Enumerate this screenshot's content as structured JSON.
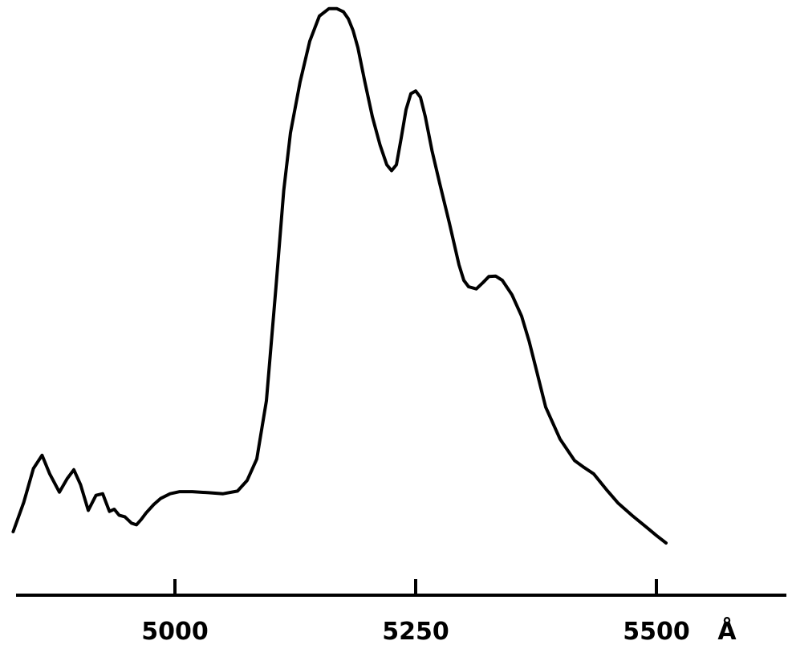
{
  "chart_data": {
    "type": "line",
    "title": "",
    "xlabel": "Å",
    "ylabel": "",
    "xlim": [
      4835,
      5635
    ],
    "ylim": [
      0,
      100
    ],
    "xticks": [
      5000,
      5250,
      5500
    ],
    "tick_labels": [
      "5000",
      "5250",
      "5500"
    ],
    "grid": false,
    "legend": "none",
    "line_color": "#000000",
    "series": [
      {
        "x": [
          4832,
          4843,
          4853,
          4862,
          4870,
          4880,
          4888,
          4895,
          4902,
          4910,
          4918,
          4925,
          4932,
          4937,
          4942,
          4948,
          4955,
          4960,
          4965,
          4970,
          4978,
          4985,
          4995,
          5005,
          5018,
          5035,
          5050,
          5065,
          5075,
          5085,
          5095,
          5105,
          5113,
          5120,
          5130,
          5140,
          5150,
          5160,
          5168,
          5175,
          5180,
          5185,
          5190,
          5197,
          5205,
          5213,
          5220,
          5225,
          5230,
          5235,
          5240,
          5245,
          5250,
          5255,
          5260,
          5267,
          5275,
          5285,
          5295,
          5300,
          5305,
          5313,
          5320,
          5326,
          5333,
          5340,
          5350,
          5360,
          5368,
          5375,
          5385,
          5400,
          5415,
          5425,
          5435,
          5448,
          5460,
          5475,
          5490,
          5500,
          5510
        ],
        "y": [
          3.0,
          8.5,
          14.8,
          17.3,
          13.8,
          10.4,
          12.9,
          14.6,
          11.8,
          7.0,
          9.8,
          10.1,
          6.8,
          7.2,
          6.1,
          5.8,
          4.6,
          4.3,
          5.3,
          6.5,
          8.1,
          9.2,
          10.1,
          10.5,
          10.5,
          10.3,
          10.1,
          10.6,
          12.6,
          16.6,
          27.5,
          48.9,
          66.8,
          77.6,
          87.1,
          94.7,
          99.4,
          100.8,
          100.8,
          100.2,
          98.9,
          96.7,
          93.5,
          87.3,
          80.6,
          75.3,
          71.6,
          70.5,
          71.6,
          76.6,
          81.9,
          84.9,
          85.4,
          84.2,
          80.6,
          74.2,
          68.1,
          60.7,
          52.9,
          50.0,
          48.8,
          48.4,
          49.6,
          50.7,
          50.8,
          50.0,
          47.3,
          43.3,
          38.5,
          33.5,
          26.3,
          20.3,
          16.3,
          15.0,
          13.8,
          10.9,
          8.4,
          6.0,
          3.8,
          2.3,
          0.9
        ]
      }
    ]
  }
}
